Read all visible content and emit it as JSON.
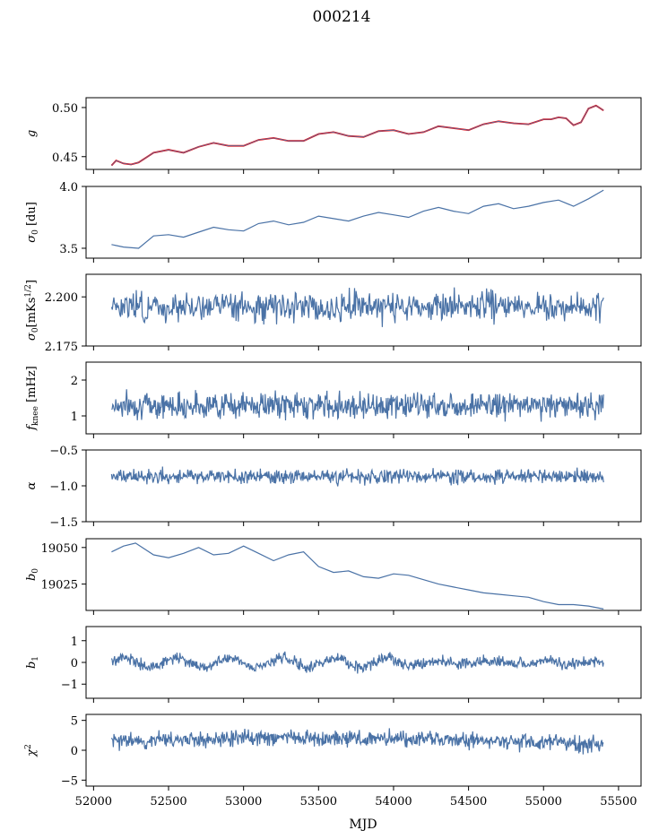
{
  "figure_title": "000214",
  "chart_data": {
    "type": "line",
    "title": "000214",
    "xlabel": "MJD",
    "xlim": [
      51950,
      55650
    ],
    "xticks": [
      52000,
      52500,
      53000,
      53500,
      54000,
      54500,
      55000,
      55500
    ],
    "x_start": 52120,
    "x_end": 55400,
    "series_color": "#4a72a6",
    "fit_color": "#ff0000",
    "panels": [
      {
        "id": "g",
        "ylabel": "g",
        "ylim": [
          0.437,
          0.51
        ],
        "yticks": [
          0.45,
          0.5
        ],
        "yticklabels": [
          "0.45",
          "0.50"
        ],
        "series": [
          {
            "x": [
              52120,
              52150,
              52200,
              52250,
              52300,
              52400,
              52500,
              52600,
              52700,
              52800,
              52900,
              53000,
              53100,
              53200,
              53300,
              53400,
              53500,
              53600,
              53700,
              53800,
              53900,
              54000,
              54100,
              54200,
              54300,
              54400,
              54500,
              54600,
              54700,
              54800,
              54900,
              55000,
              55050,
              55100,
              55150,
              55200,
              55250,
              55300,
              55350,
              55400
            ],
            "y": [
              0.441,
              0.446,
              0.443,
              0.442,
              0.444,
              0.454,
              0.457,
              0.454,
              0.46,
              0.464,
              0.461,
              0.461,
              0.467,
              0.469,
              0.466,
              0.466,
              0.473,
              0.475,
              0.471,
              0.47,
              0.476,
              0.477,
              0.473,
              0.475,
              0.481,
              0.479,
              0.477,
              0.483,
              0.486,
              0.484,
              0.483,
              0.488,
              0.488,
              0.49,
              0.489,
              0.482,
              0.485,
              0.499,
              0.502,
              0.497
            ]
          }
        ]
      },
      {
        "id": "sigma0",
        "ylabel": "σ0 [du]",
        "ylim": [
          3.42,
          4.0
        ],
        "yticks": [
          3.5,
          4.0
        ],
        "yticklabels": [
          "3.5",
          "4.0"
        ],
        "series": [
          {
            "x": [
              52120,
              52200,
              52300,
              52400,
              52500,
              52600,
              52700,
              52800,
              52900,
              53000,
              53100,
              53200,
              53300,
              53400,
              53500,
              53600,
              53700,
              53800,
              53900,
              54000,
              54100,
              54200,
              54300,
              54400,
              54500,
              54600,
              54700,
              54800,
              54900,
              55000,
              55100,
              55200,
              55300,
              55400
            ],
            "y": [
              3.53,
              3.51,
              3.5,
              3.6,
              3.61,
              3.59,
              3.63,
              3.67,
              3.65,
              3.64,
              3.7,
              3.72,
              3.69,
              3.71,
              3.76,
              3.74,
              3.72,
              3.76,
              3.79,
              3.77,
              3.75,
              3.8,
              3.83,
              3.8,
              3.78,
              3.84,
              3.86,
              3.82,
              3.84,
              3.87,
              3.89,
              3.84,
              3.9,
              3.97
            ]
          }
        ]
      },
      {
        "id": "sigma_units",
        "ylabel": "σ0[mKs1/2]",
        "ylim": [
          2.175,
          2.2115
        ],
        "yticks": [
          2.175,
          2.2
        ],
        "yticklabels": [
          "2.175",
          "2.200"
        ],
        "noise": {
          "seed": 3,
          "mean": 2.195,
          "amp": 0.0045,
          "step": 5
        }
      },
      {
        "id": "fknee",
        "ylabel": "fknee [mHz]",
        "ylim": [
          0.5,
          2.5
        ],
        "yticks": [
          1,
          2
        ],
        "yticklabels": [
          "1",
          "2"
        ],
        "noise": {
          "seed": 7,
          "mean": 1.3,
          "amp": 0.22,
          "step": 4
        }
      },
      {
        "id": "alpha",
        "ylabel": "α",
        "ylim": [
          -1.5,
          -0.5
        ],
        "yticks": [
          -1.5,
          -1.0,
          -0.5
        ],
        "yticklabels": [
          "−1.5",
          "−1.0",
          "−0.5"
        ],
        "noise": {
          "seed": 11,
          "mean": -0.87,
          "amp": 0.06,
          "step": 4
        }
      },
      {
        "id": "b0",
        "ylabel": "b0",
        "ylim": [
          19007,
          19056
        ],
        "yticks": [
          19025,
          19050
        ],
        "yticklabels": [
          "19025",
          "19050"
        ],
        "series": [
          {
            "x": [
              52120,
              52200,
              52280,
              52400,
              52500,
              52600,
              52700,
              52800,
              52900,
              53000,
              53100,
              53200,
              53300,
              53400,
              53500,
              53600,
              53700,
              53800,
              53900,
              54000,
              54100,
              54200,
              54300,
              54400,
              54500,
              54600,
              54700,
              54800,
              54900,
              55000,
              55100,
              55200,
              55300,
              55400
            ],
            "y": [
              19047,
              19051,
              19053,
              19045,
              19043,
              19046,
              19050,
              19045,
              19046,
              19051,
              19046,
              19041,
              19045,
              19047,
              19037,
              19033,
              19034,
              19030,
              19029,
              19032,
              19031,
              19028,
              19025,
              19023,
              19021,
              19019,
              19018,
              19017,
              19016,
              19013,
              19011,
              19011,
              19010,
              19008
            ]
          }
        ]
      },
      {
        "id": "b1",
        "ylabel": "b1",
        "ylim": [
          -1.65,
          1.65
        ],
        "yticks": [
          -1,
          0,
          1
        ],
        "yticklabels": [
          "−1",
          "0",
          "1"
        ],
        "noise": {
          "seed": 19,
          "mean": 0.0,
          "amp": 0.16,
          "step": 4,
          "wave_amp": 0.22
        }
      },
      {
        "id": "chi2",
        "ylabel": "χ2",
        "ylim": [
          -6,
          6
        ],
        "yticks": [
          -5,
          0,
          5
        ],
        "yticklabels": [
          "−5",
          "0",
          "5"
        ],
        "noise": {
          "seed": 23,
          "mean": 1.5,
          "amp": 0.85,
          "step": 4,
          "trend": 1.2
        }
      }
    ]
  }
}
